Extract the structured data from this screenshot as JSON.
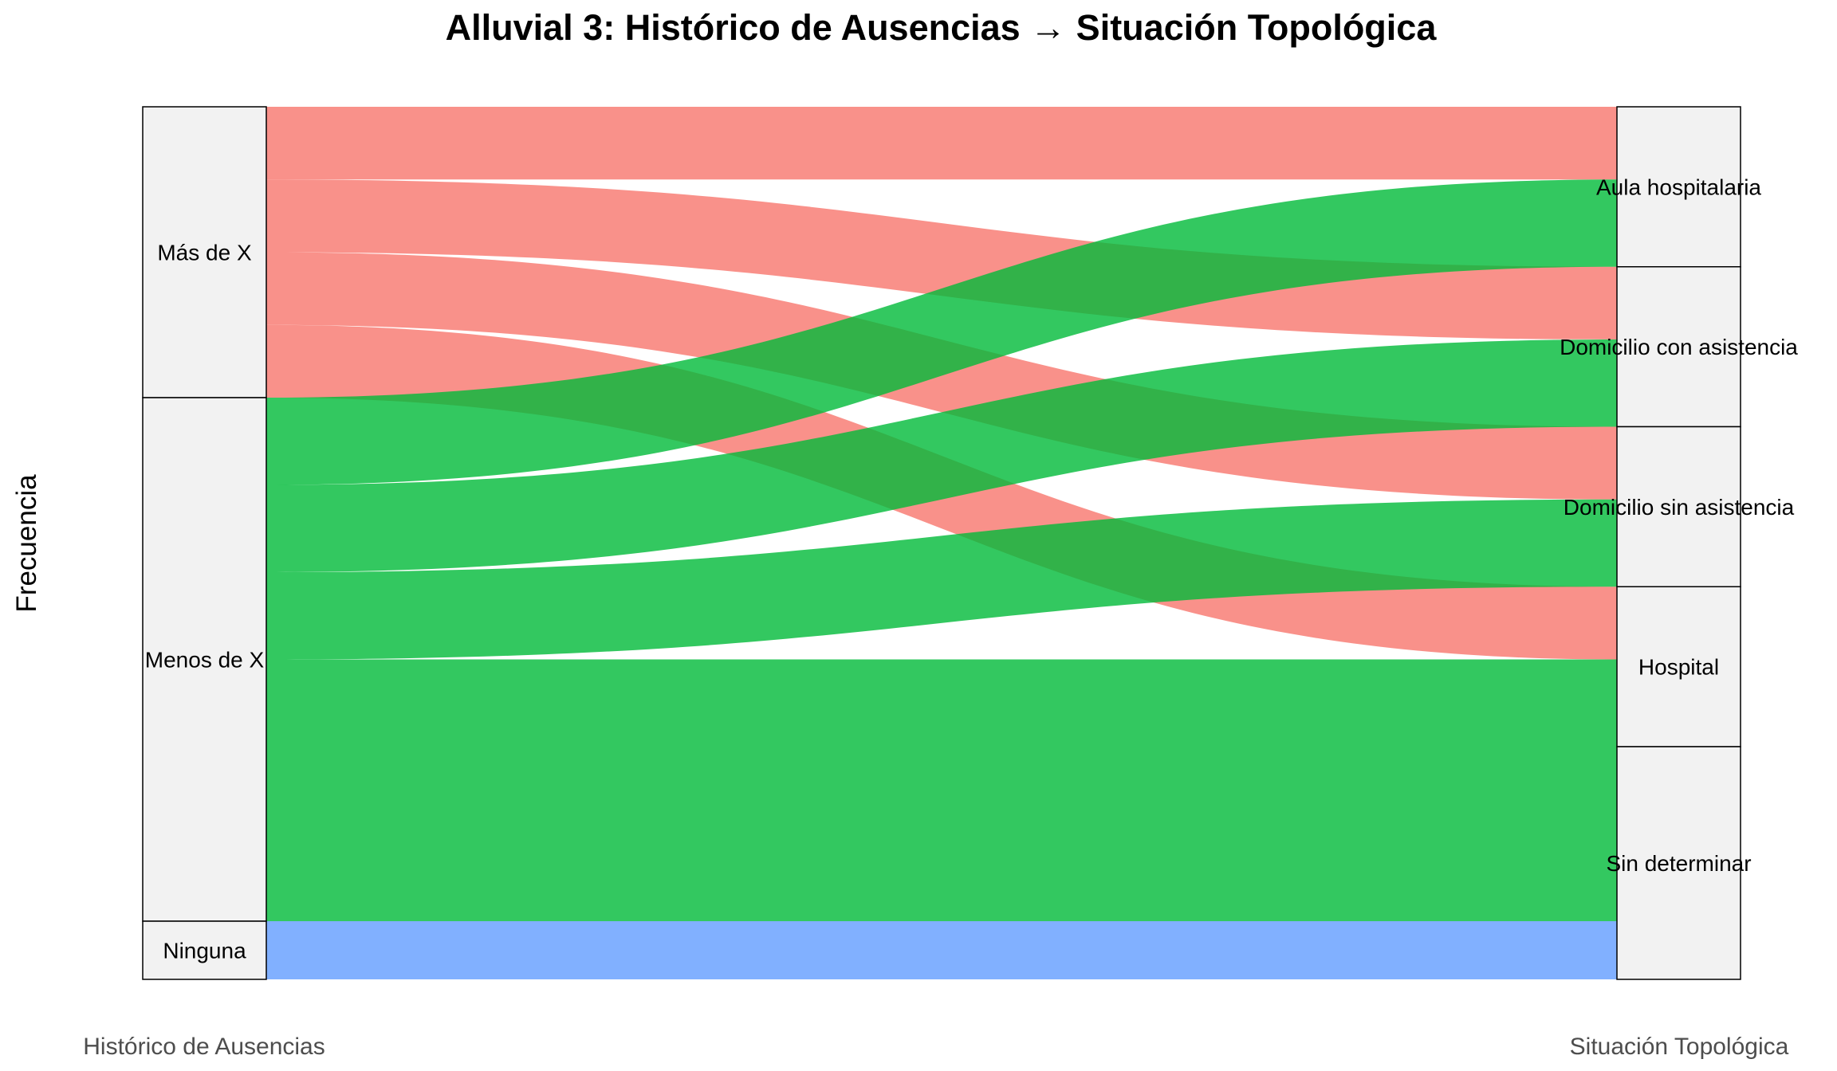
{
  "chart_data": {
    "type": "alluvial",
    "title": "Alluvial 3: Histórico de Ausencias → Situación Topológica",
    "ylabel": "Frecuencia",
    "axes": [
      {
        "name": "Histórico de Ausencias",
        "strata": [
          "Más de X",
          "Menos de X",
          "Ninguna"
        ]
      },
      {
        "name": "Situación Topológica",
        "strata": [
          "Aula hospitalaria",
          "Domicilio con asistencia",
          "Domicilio sin asistencia",
          "Hospital",
          "Sin determinar"
        ]
      }
    ],
    "fill_colors": {
      "Más de X": "#F8766D",
      "Menos de X": "#00BA38",
      "Ninguna": "#619CFF"
    },
    "flows": [
      {
        "from": "Más de X",
        "to": "Aula hospitalaria",
        "value": 1
      },
      {
        "from": "Más de X",
        "to": "Domicilio con asistencia",
        "value": 1
      },
      {
        "from": "Más de X",
        "to": "Domicilio sin asistencia",
        "value": 1
      },
      {
        "from": "Más de X",
        "to": "Hospital",
        "value": 1
      },
      {
        "from": "Menos de X",
        "to": "Aula hospitalaria",
        "value": 1.2
      },
      {
        "from": "Menos de X",
        "to": "Domicilio con asistencia",
        "value": 1.2
      },
      {
        "from": "Menos de X",
        "to": "Domicilio sin asistencia",
        "value": 1.2
      },
      {
        "from": "Menos de X",
        "to": "Hospital",
        "value": 1.2
      },
      {
        "from": "Menos de X",
        "to": "Sin determinar",
        "value": 2.4
      },
      {
        "from": "Ninguna",
        "to": "Sin determinar",
        "value": 0.8
      }
    ]
  }
}
